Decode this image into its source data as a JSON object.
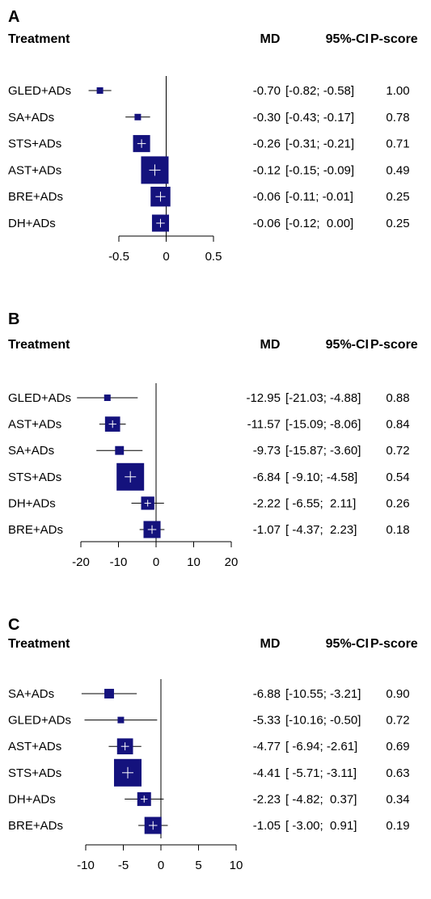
{
  "headers": {
    "treatment": "Treatment",
    "md": "MD",
    "ci": "95%-CI",
    "pscore": "P-score"
  },
  "colors": {
    "box": "#14127d",
    "line": "#000000",
    "cross": "#ffffff"
  },
  "chart_data": [
    {
      "panel": "A",
      "type": "forest",
      "xlim": [
        -0.5,
        0.5
      ],
      "ticks": [
        -0.5,
        0,
        0.5
      ],
      "tick_labels": [
        "-0.5",
        "0",
        "0.5"
      ],
      "reference_line": 0,
      "rows": [
        {
          "treatment": "GLED+ADs",
          "md": -0.7,
          "lower": -0.82,
          "upper": -0.58,
          "pscore": 1.0,
          "box": 0.22,
          "md_text": "-0.70",
          "ci_text": "[-0.82; -0.58]",
          "pscore_text": "1.00"
        },
        {
          "treatment": "SA+ADs",
          "md": -0.3,
          "lower": -0.43,
          "upper": -0.17,
          "pscore": 0.78,
          "box": 0.22,
          "md_text": "-0.30",
          "ci_text": "[-0.43; -0.17]",
          "pscore_text": "0.78"
        },
        {
          "treatment": "STS+ADs",
          "md": -0.26,
          "lower": -0.31,
          "upper": -0.21,
          "pscore": 0.71,
          "box": 0.62,
          "md_text": "-0.26",
          "ci_text": "[-0.31; -0.21]",
          "pscore_text": "0.71"
        },
        {
          "treatment": "AST+ADs",
          "md": -0.12,
          "lower": -0.15,
          "upper": -0.09,
          "pscore": 0.49,
          "box": 1.0,
          "md_text": "-0.12",
          "ci_text": "[-0.15; -0.09]",
          "pscore_text": "0.49"
        },
        {
          "treatment": "BRE+ADs",
          "md": -0.06,
          "lower": -0.11,
          "upper": -0.01,
          "pscore": 0.25,
          "box": 0.72,
          "md_text": "-0.06",
          "ci_text": "[-0.11; -0.01]",
          "pscore_text": "0.25"
        },
        {
          "treatment": "DH+ADs",
          "md": -0.06,
          "lower": -0.12,
          "upper": 0.0,
          "pscore": 0.25,
          "box": 0.62,
          "md_text": "-0.06",
          "ci_text": "[-0.12;  0.00]",
          "pscore_text": "0.25"
        }
      ]
    },
    {
      "panel": "B",
      "type": "forest",
      "xlim": [
        -20,
        20
      ],
      "ticks": [
        -20,
        -10,
        0,
        10,
        20
      ],
      "tick_labels": [
        "-20",
        "-10",
        "0",
        "10",
        "20"
      ],
      "reference_line": 0,
      "rows": [
        {
          "treatment": "GLED+ADs",
          "md": -12.95,
          "lower": -21.03,
          "upper": -4.88,
          "pscore": 0.88,
          "box": 0.22,
          "md_text": "-12.95",
          "ci_text": "[-21.03; -4.88]",
          "pscore_text": "0.88"
        },
        {
          "treatment": "AST+ADs",
          "md": -11.57,
          "lower": -15.09,
          "upper": -8.06,
          "pscore": 0.84,
          "box": 0.55,
          "md_text": "-11.57",
          "ci_text": "[-15.09; -8.06]",
          "pscore_text": "0.84"
        },
        {
          "treatment": "SA+ADs",
          "md": -9.73,
          "lower": -15.87,
          "upper": -3.6,
          "pscore": 0.72,
          "box": 0.32,
          "md_text": "-9.73",
          "ci_text": "[-15.87; -3.60]",
          "pscore_text": "0.72"
        },
        {
          "treatment": "STS+ADs",
          "md": -6.84,
          "lower": -9.1,
          "upper": -4.58,
          "pscore": 0.54,
          "box": 1.0,
          "md_text": "-6.84",
          "ci_text": "[ -9.10; -4.58]",
          "pscore_text": "0.54"
        },
        {
          "treatment": "DH+ADs",
          "md": -2.22,
          "lower": -6.55,
          "upper": 2.11,
          "pscore": 0.26,
          "box": 0.48,
          "md_text": "-2.22",
          "ci_text": "[ -6.55;  2.11]",
          "pscore_text": "0.26"
        },
        {
          "treatment": "BRE+ADs",
          "md": -1.07,
          "lower": -4.37,
          "upper": 2.23,
          "pscore": 0.18,
          "box": 0.62,
          "md_text": "-1.07",
          "ci_text": "[ -4.37;  2.23]",
          "pscore_text": "0.18"
        }
      ]
    },
    {
      "panel": "C",
      "type": "forest",
      "xlim": [
        -10,
        10
      ],
      "ticks": [
        -10,
        -5,
        0,
        5,
        10
      ],
      "tick_labels": [
        "-10",
        "-5",
        "0",
        "5",
        "10"
      ],
      "reference_line": 0,
      "rows": [
        {
          "treatment": "SA+ADs",
          "md": -6.88,
          "lower": -10.55,
          "upper": -3.21,
          "pscore": 0.9,
          "box": 0.35,
          "md_text": "-6.88",
          "ci_text": "[-10.55; -3.21]",
          "pscore_text": "0.90"
        },
        {
          "treatment": "GLED+ADs",
          "md": -5.33,
          "lower": -10.16,
          "upper": -0.5,
          "pscore": 0.72,
          "box": 0.22,
          "md_text": "-5.33",
          "ci_text": "[-10.16; -0.50]",
          "pscore_text": "0.72"
        },
        {
          "treatment": "AST+ADs",
          "md": -4.77,
          "lower": -6.94,
          "upper": -2.61,
          "pscore": 0.69,
          "box": 0.58,
          "md_text": "-4.77",
          "ci_text": "[ -6.94; -2.61]",
          "pscore_text": "0.69"
        },
        {
          "treatment": "STS+ADs",
          "md": -4.41,
          "lower": -5.71,
          "upper": -3.11,
          "pscore": 0.63,
          "box": 1.0,
          "md_text": "-4.41",
          "ci_text": "[ -5.71; -3.11]",
          "pscore_text": "0.63"
        },
        {
          "treatment": "DH+ADs",
          "md": -2.23,
          "lower": -4.82,
          "upper": 0.37,
          "pscore": 0.34,
          "box": 0.5,
          "md_text": "-2.23",
          "ci_text": "[ -4.82;  0.37]",
          "pscore_text": "0.34"
        },
        {
          "treatment": "BRE+ADs",
          "md": -1.05,
          "lower": -3.0,
          "upper": 0.91,
          "pscore": 0.19,
          "box": 0.62,
          "md_text": "-1.05",
          "ci_text": "[ -3.00;  0.91]",
          "pscore_text": "0.19"
        }
      ]
    }
  ]
}
